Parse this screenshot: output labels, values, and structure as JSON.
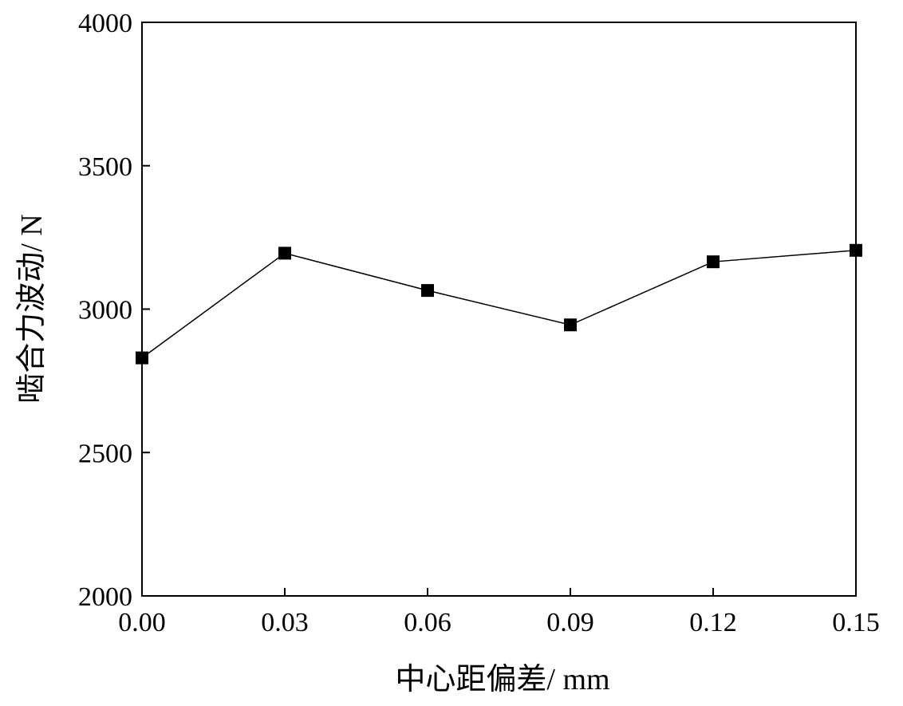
{
  "chart_data": {
    "type": "line",
    "title": "",
    "xlabel": "中心距偏差/ mm",
    "ylabel": "啮合力波动/ N",
    "xlim": [
      0,
      0.15
    ],
    "ylim": [
      2000,
      4000
    ],
    "x_ticks": [
      "0.00",
      "0.03",
      "0.06",
      "0.09",
      "0.12",
      "0.15"
    ],
    "y_ticks": [
      "2000",
      "2500",
      "3000",
      "3500",
      "4000"
    ],
    "grid": false,
    "legend": "none",
    "marker": "square",
    "line_color": "#000000",
    "series": [
      {
        "x": [
          0.0,
          0.03,
          0.06,
          0.09,
          0.12,
          0.15
        ],
        "values": [
          2830,
          3195,
          3065,
          2945,
          3165,
          3205
        ]
      }
    ]
  }
}
